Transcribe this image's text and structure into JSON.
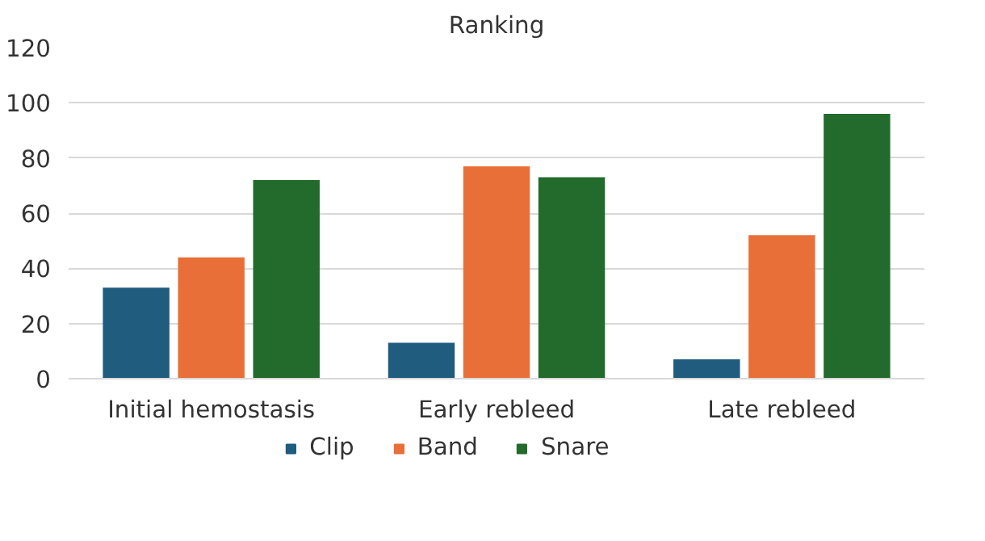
{
  "chart_data": {
    "type": "bar",
    "title": "Ranking",
    "categories": [
      "Initial hemostasis",
      "Early rebleed",
      "Late rebleed"
    ],
    "series": [
      {
        "name": "Clip",
        "color": "#1f5c7e",
        "values": [
          33,
          13,
          7
        ]
      },
      {
        "name": "Band",
        "color": "#e87038",
        "values": [
          44,
          77,
          52
        ]
      },
      {
        "name": "Snare",
        "color": "#236b2c",
        "values": [
          72,
          73,
          96
        ]
      }
    ],
    "ylim": [
      0,
      120
    ],
    "yticks": [
      0,
      20,
      40,
      60,
      80,
      100,
      120
    ],
    "grid": "y",
    "legend": "bottom"
  }
}
